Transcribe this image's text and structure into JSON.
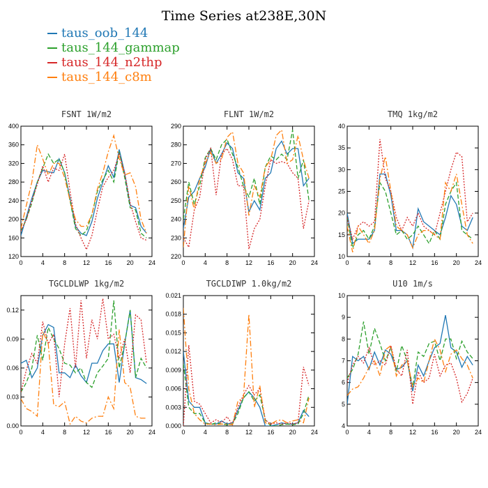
{
  "title": "Time Series at238E,30N",
  "legend": [
    {
      "name": "taus_oob_144",
      "color": "#1f77b4"
    },
    {
      "name": "taus_144_gammap",
      "color": "#2ca02c"
    },
    {
      "name": "taus_144_n2thp",
      "color": "#d62728"
    },
    {
      "name": "taus_144_c8m",
      "color": "#ff7f0e"
    }
  ],
  "chart_data": [
    {
      "type": "line",
      "title": "FSNT   1W/m2",
      "xlim": [
        0,
        24
      ],
      "xticks": [
        0,
        4,
        8,
        12,
        16,
        20,
        24
      ],
      "ylim": [
        120,
        400
      ],
      "yticks": [
        120,
        160,
        200,
        240,
        280,
        320,
        360,
        400
      ],
      "ytick_labels": [
        "120",
        "160",
        "200",
        "240",
        "280",
        "320",
        "360",
        "400"
      ],
      "x": [
        0,
        1,
        2,
        3,
        4,
        5,
        6,
        7,
        8,
        9,
        10,
        11,
        12,
        13,
        14,
        15,
        16,
        17,
        18,
        19,
        20,
        21,
        22,
        23
      ],
      "series": [
        {
          "name": "taus_oob_144",
          "dash": "",
          "values": [
            165,
            205,
            245,
            280,
            305,
            302,
            300,
            330,
            300,
            245,
            185,
            170,
            165,
            195,
            245,
            280,
            315,
            290,
            350,
            300,
            230,
            225,
            185,
            170
          ]
        },
        {
          "name": "taus_144_gammap",
          "dash": "6,3",
          "values": [
            175,
            200,
            235,
            280,
            310,
            340,
            320,
            330,
            300,
            240,
            180,
            165,
            175,
            210,
            260,
            285,
            305,
            280,
            345,
            290,
            225,
            220,
            170,
            160
          ]
        },
        {
          "name": "taus_144_n2thp",
          "dash": "2,2",
          "values": [
            175,
            200,
            240,
            275,
            315,
            280,
            310,
            305,
            340,
            260,
            190,
            160,
            135,
            165,
            220,
            270,
            290,
            305,
            340,
            300,
            235,
            195,
            160,
            155
          ]
        },
        {
          "name": "taus_144_c8m",
          "dash": "8,3,2,3",
          "values": [
            180,
            230,
            280,
            360,
            330,
            295,
            320,
            320,
            290,
            240,
            200,
            185,
            185,
            210,
            265,
            300,
            345,
            380,
            330,
            295,
            300,
            270,
            200,
            170
          ]
        }
      ]
    },
    {
      "type": "line",
      "title": "FLNT   1W/m2",
      "xlim": [
        0,
        24
      ],
      "xticks": [
        0,
        4,
        8,
        12,
        16,
        20,
        24
      ],
      "ylim": [
        220,
        290
      ],
      "yticks": [
        220,
        230,
        240,
        250,
        260,
        270,
        280,
        290
      ],
      "ytick_labels": [
        "220",
        "230",
        "240",
        "250",
        "260",
        "270",
        "280",
        "290"
      ],
      "x": [
        0,
        1,
        2,
        3,
        4,
        5,
        6,
        7,
        8,
        9,
        10,
        11,
        12,
        13,
        14,
        15,
        16,
        17,
        18,
        19,
        20,
        21,
        22,
        23
      ],
      "series": [
        {
          "name": "taus_oob_144",
          "dash": "",
          "values": [
            235,
            252,
            255,
            262,
            268,
            278,
            270,
            275,
            281,
            278,
            265,
            262,
            244,
            250,
            245,
            262,
            265,
            278,
            282,
            275,
            278,
            278,
            258,
            262
          ]
        },
        {
          "name": "taus_144_gammap",
          "dash": "6,3",
          "values": [
            240,
            260,
            248,
            258,
            273,
            278,
            272,
            280,
            283,
            275,
            268,
            258,
            252,
            262,
            248,
            268,
            274,
            272,
            275,
            272,
            288,
            262,
            272,
            250
          ]
        },
        {
          "name": "taus_144_n2thp",
          "dash": "2,2",
          "values": [
            230,
            225,
            245,
            252,
            272,
            278,
            253,
            275,
            278,
            272,
            258,
            258,
            224,
            235,
            240,
            258,
            272,
            270,
            271,
            270,
            265,
            262,
            235,
            250
          ]
        },
        {
          "name": "taus_144_c8m",
          "dash": "8,3,2,3",
          "values": [
            225,
            258,
            245,
            262,
            270,
            276,
            270,
            272,
            284,
            287,
            270,
            265,
            242,
            258,
            252,
            268,
            272,
            285,
            288,
            270,
            272,
            285,
            272,
            262
          ]
        }
      ]
    },
    {
      "type": "line",
      "title": "TMQ   1kg/m2",
      "xlim": [
        0,
        24
      ],
      "xticks": [
        0,
        4,
        8,
        12,
        16,
        20,
        24
      ],
      "ylim": [
        10,
        40
      ],
      "yticks": [
        10,
        15,
        20,
        25,
        30,
        35,
        40
      ],
      "ytick_labels": [
        "10",
        "15",
        "20",
        "25",
        "30",
        "35",
        "40"
      ],
      "x": [
        0,
        1,
        2,
        3,
        4,
        5,
        6,
        7,
        8,
        9,
        10,
        11,
        12,
        13,
        14,
        15,
        16,
        17,
        18,
        19,
        20,
        21,
        22,
        23
      ],
      "series": [
        {
          "name": "taus_oob_144",
          "dash": "",
          "values": [
            20,
            13,
            14,
            14,
            14,
            16,
            29,
            29,
            24,
            16,
            16,
            15,
            12,
            21,
            18,
            17,
            16,
            15,
            19,
            24,
            22,
            17,
            16,
            19
          ]
        },
        {
          "name": "taus_144_gammap",
          "dash": "6,3",
          "values": [
            19,
            12,
            15,
            16,
            14,
            17,
            27,
            25,
            20,
            15,
            16,
            14,
            15,
            17,
            15,
            13,
            16,
            14,
            22,
            25,
            27,
            16,
            15,
            14
          ]
        },
        {
          "name": "taus_144_n2thp",
          "dash": "2,2",
          "values": [
            19,
            14,
            17,
            18,
            17,
            18,
            37,
            28,
            25,
            19,
            16,
            19,
            17,
            20,
            17,
            16,
            15,
            20,
            25,
            30,
            34,
            33,
            18,
            20
          ]
        },
        {
          "name": "taus_144_c8m",
          "dash": "8,3,2,3",
          "values": [
            17,
            11,
            17,
            15,
            13,
            16,
            28,
            33,
            25,
            17,
            16,
            15,
            12,
            15,
            16,
            16,
            15,
            14,
            27,
            25,
            29,
            22,
            15,
            13
          ]
        }
      ]
    },
    {
      "type": "line",
      "title": "TGCLDLWP   1kg/m2",
      "xlim": [
        0,
        24
      ],
      "xticks": [
        0,
        4,
        8,
        12,
        16,
        20,
        24
      ],
      "ylim": [
        0,
        0.135
      ],
      "yticks": [
        0,
        0.03,
        0.06,
        0.09,
        0.12
      ],
      "ytick_labels": [
        "0.00",
        "0.03",
        "0.06",
        "0.09",
        "0.12"
      ],
      "x": [
        0,
        1,
        2,
        3,
        4,
        5,
        6,
        7,
        8,
        9,
        10,
        11,
        12,
        13,
        14,
        15,
        16,
        17,
        18,
        19,
        20,
        21,
        22,
        23
      ],
      "series": [
        {
          "name": "taus_oob_144",
          "dash": "",
          "values": [
            0.065,
            0.068,
            0.05,
            0.06,
            0.094,
            0.105,
            0.102,
            0.055,
            0.055,
            0.05,
            0.063,
            0.052,
            0.045,
            0.065,
            0.065,
            0.078,
            0.085,
            0.085,
            0.045,
            0.085,
            0.12,
            0.05,
            0.048,
            0.044
          ]
        },
        {
          "name": "taus_144_gammap",
          "dash": "6,3",
          "values": [
            0.035,
            0.045,
            0.06,
            0.094,
            0.068,
            0.102,
            0.09,
            0.08,
            0.065,
            0.063,
            0.055,
            0.06,
            0.045,
            0.04,
            0.055,
            0.062,
            0.07,
            0.13,
            0.06,
            0.085,
            0.12,
            0.05,
            0.07,
            0.06
          ]
        },
        {
          "name": "taus_144_n2thp",
          "dash": "2,2",
          "values": [
            0.035,
            0.058,
            0.075,
            0.065,
            0.108,
            0.085,
            0.095,
            0.03,
            0.085,
            0.122,
            0.06,
            0.13,
            0.07,
            0.11,
            0.09,
            0.132,
            0.09,
            0.095,
            0.07,
            0.09,
            0.055,
            0.115,
            0.11,
            0.065
          ]
        },
        {
          "name": "taus_144_c8m",
          "dash": "8,3,2,3",
          "values": [
            0.028,
            0.018,
            0.015,
            0.01,
            0.098,
            0.085,
            0.022,
            0.02,
            0.025,
            0.002,
            0.01,
            0.005,
            0.003,
            0.008,
            0.01,
            0.01,
            0.03,
            0.018,
            0.1,
            0.045,
            0.04,
            0.01,
            0.008,
            0.008
          ]
        }
      ]
    },
    {
      "type": "line",
      "title": "TGCLDIWP   1.0kg/m2",
      "xlim": [
        0,
        24
      ],
      "xticks": [
        0,
        4,
        8,
        12,
        16,
        20,
        24
      ],
      "ylim": [
        0,
        0.021
      ],
      "yticks": [
        0,
        0.003,
        0.006,
        0.009,
        0.012,
        0.015,
        0.018,
        0.021
      ],
      "ytick_labels": [
        "0.000",
        "0.003",
        "0.006",
        "0.009",
        "0.012",
        "0.015",
        "0.018",
        "0.021"
      ],
      "x": [
        0,
        1,
        2,
        3,
        4,
        5,
        6,
        7,
        8,
        9,
        10,
        11,
        12,
        13,
        14,
        15,
        16,
        17,
        18,
        19,
        20,
        21,
        22,
        23
      ],
      "series": [
        {
          "name": "taus_oob_144",
          "dash": "",
          "values": [
            0.012,
            0.004,
            0.003,
            0.003,
            0.0005,
            0.0003,
            0.0003,
            0.0008,
            0.0003,
            0.0005,
            0.0025,
            0.0045,
            0.0055,
            0.0045,
            0.003,
            0.0,
            0.0,
            0.0002,
            0.0005,
            0.0003,
            0.0003,
            0.0005,
            0.0025,
            0.0015
          ]
        },
        {
          "name": "taus_144_gammap",
          "dash": "6,3",
          "values": [
            0.01,
            0.003,
            0.002,
            0.002,
            0.0005,
            0.0002,
            0.0005,
            0.0003,
            0.0002,
            0.0003,
            0.002,
            0.0045,
            0.0055,
            0.004,
            0.005,
            0.001,
            0.0,
            0.0,
            0.0002,
            0.0003,
            0.0002,
            0.0003,
            0.002,
            0.005
          ]
        },
        {
          "name": "taus_144_n2thp",
          "dash": "2,2",
          "values": [
            0.0,
            0.013,
            0.004,
            0.0035,
            0.002,
            0.0005,
            0.001,
            0.0005,
            0.0015,
            0.0002,
            0.003,
            0.005,
            0.0065,
            0.005,
            0.006,
            0.001,
            0.0003,
            0.0005,
            0.0003,
            0.0005,
            0.0003,
            0.0005,
            0.0095,
            0.0065
          ]
        },
        {
          "name": "taus_144_c8m",
          "dash": "8,3,2,3",
          "values": [
            0.019,
            0.006,
            0.002,
            0.001,
            0.0003,
            0.0003,
            0.0002,
            0.0003,
            0.0003,
            0.0002,
            0.004,
            0.0045,
            0.018,
            0.003,
            0.0065,
            0.0005,
            0.0003,
            0.0008,
            0.001,
            0.0005,
            0.0008,
            0.001,
            0.0005,
            0.0045
          ]
        }
      ]
    },
    {
      "type": "line",
      "title": "U10   1m/s",
      "xlim": [
        0,
        24
      ],
      "xticks": [
        0,
        4,
        8,
        12,
        16,
        20,
        24
      ],
      "ylim": [
        4,
        10
      ],
      "yticks": [
        4,
        5,
        6,
        7,
        8,
        9,
        10
      ],
      "ytick_labels": [
        "4",
        "5",
        "6",
        "7",
        "8",
        "9",
        "10"
      ],
      "x": [
        0,
        1,
        2,
        3,
        4,
        5,
        6,
        7,
        8,
        9,
        10,
        11,
        12,
        13,
        14,
        15,
        16,
        17,
        18,
        19,
        20,
        21,
        22,
        23
      ],
      "series": [
        {
          "name": "taus_oob_144",
          "dash": "",
          "values": [
            5.0,
            7.2,
            7.0,
            7.2,
            6.6,
            7.4,
            6.8,
            7.5,
            7.3,
            6.6,
            6.7,
            7.0,
            5.6,
            6.8,
            6.3,
            7.0,
            7.6,
            7.8,
            9.1,
            7.6,
            7.4,
            6.7,
            7.2,
            6.8
          ]
        },
        {
          "name": "taus_144_gammap",
          "dash": "6,3",
          "values": [
            6.2,
            6.6,
            7.3,
            8.8,
            7.3,
            8.5,
            7.8,
            7.0,
            7.6,
            6.5,
            7.7,
            7.0,
            5.8,
            7.4,
            7.2,
            7.8,
            7.9,
            7.0,
            8.0,
            8.0,
            7.1,
            7.9,
            7.4,
            7.1
          ]
        },
        {
          "name": "taus_144_n2thp",
          "dash": "2,2",
          "values": [
            6.0,
            6.8,
            7.2,
            6.9,
            7.6,
            6.8,
            7.0,
            6.8,
            7.7,
            6.6,
            6.3,
            7.5,
            5.0,
            6.5,
            6.0,
            6.2,
            7.3,
            6.3,
            6.8,
            6.9,
            6.2,
            5.1,
            5.5,
            6.2
          ]
        },
        {
          "name": "taus_144_c8m",
          "dash": "8,3,2,3",
          "values": [
            5.4,
            5.7,
            5.8,
            6.2,
            6.7,
            7.0,
            6.3,
            7.5,
            7.7,
            6.3,
            6.8,
            7.0,
            5.8,
            6.2,
            6.0,
            7.0,
            8.0,
            7.5,
            6.5,
            7.3,
            7.5,
            7.1,
            6.8,
            6.2
          ]
        }
      ]
    }
  ]
}
